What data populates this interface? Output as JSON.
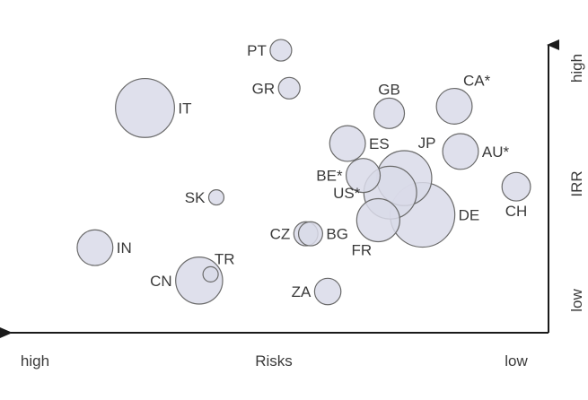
{
  "chart_data": {
    "type": "scatter",
    "subtype": "bubble",
    "xlabel": "Risks",
    "x_tick_labels": {
      "left": "high",
      "right": "low"
    },
    "ylabel": "IRR",
    "y_tick_labels": {
      "top": "high",
      "bottom": "low"
    },
    "xlim": [
      0,
      100
    ],
    "ylim": [
      0,
      100
    ],
    "grid": false,
    "colors": {
      "bubble_fill": "#d9dbe9",
      "bubble_stroke": "#6a6a6a",
      "axis": "#1a1a1a",
      "text": "#3a3a3a"
    },
    "points": [
      {
        "label": "PT",
        "x": 50.5,
        "y": 92.1,
        "size": 4,
        "label_side": "left"
      },
      {
        "label": "GR",
        "x": 52.1,
        "y": 79.3,
        "size": 4,
        "label_side": "left"
      },
      {
        "label": "IT",
        "x": 24.4,
        "y": 72.6,
        "size": 30,
        "label_side": "right"
      },
      {
        "label": "GB",
        "x": 71.3,
        "y": 70.8,
        "size": 8,
        "label_side": "top"
      },
      {
        "label": "CA*",
        "x": 83.8,
        "y": 73.2,
        "size": 11,
        "label_side": "top-right"
      },
      {
        "label": "ES",
        "x": 63.3,
        "y": 60.6,
        "size": 11,
        "label_side": "right"
      },
      {
        "label": "JP",
        "x": 74.2,
        "y": 48.9,
        "size": 26,
        "label_side": "top-right"
      },
      {
        "label": "AU*",
        "x": 85.0,
        "y": 57.9,
        "size": 11,
        "label_side": "right"
      },
      {
        "label": "BE*",
        "x": 66.3,
        "y": 49.8,
        "size": 10,
        "label_side": "left"
      },
      {
        "label": "US*",
        "x": 71.5,
        "y": 44.0,
        "size": 24,
        "label_side": "left"
      },
      {
        "label": "CH",
        "x": 95.7,
        "y": 46.0,
        "size": 7,
        "label_side": "bottom"
      },
      {
        "label": "SK",
        "x": 38.1,
        "y": 42.4,
        "size": 2,
        "label_side": "left"
      },
      {
        "label": "DE",
        "x": 77.7,
        "y": 36.5,
        "size": 36,
        "label_side": "right"
      },
      {
        "label": "FR",
        "x": 69.2,
        "y": 34.7,
        "size": 16,
        "label_side": "bottom-left"
      },
      {
        "label": "CZ",
        "x": 55.3,
        "y": 30.1,
        "size": 5,
        "label_side": "left"
      },
      {
        "label": "BG",
        "x": 56.2,
        "y": 30.1,
        "size": 5,
        "label_side": "right"
      },
      {
        "label": "IN",
        "x": 14.8,
        "y": 25.4,
        "size": 11,
        "label_side": "right"
      },
      {
        "label": "TR",
        "x": 37.0,
        "y": 16.4,
        "size": 2,
        "label_side": "top-right"
      },
      {
        "label": "CN",
        "x": 34.8,
        "y": 14.3,
        "size": 19,
        "label_side": "left"
      },
      {
        "label": "ZA",
        "x": 59.5,
        "y": 10.6,
        "size": 6,
        "label_side": "left"
      }
    ]
  }
}
